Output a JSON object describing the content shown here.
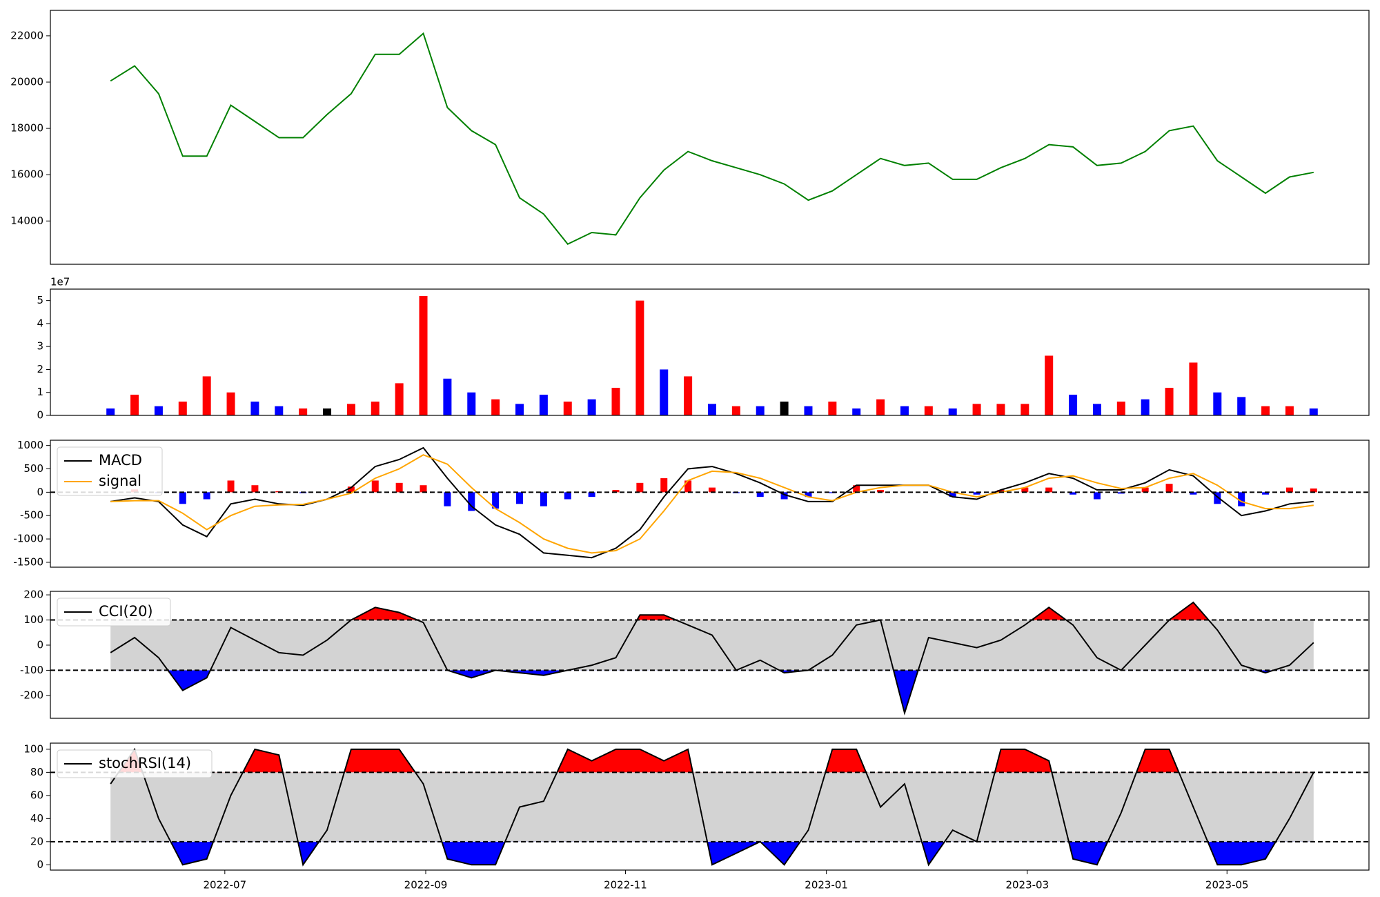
{
  "chart_data": [
    {
      "type": "line",
      "x": [
        2022.405,
        2022.425,
        2022.445,
        2022.465,
        2022.485,
        2022.505,
        2022.525,
        2022.545,
        2022.565,
        2022.585,
        2022.605,
        2022.625,
        2022.645,
        2022.665,
        2022.685,
        2022.705,
        2022.725,
        2022.745,
        2022.765,
        2022.785,
        2022.805,
        2022.825,
        2022.845,
        2022.865,
        2022.885,
        2022.905,
        2022.925,
        2022.945,
        2022.965,
        2022.985,
        2023.005,
        2023.025,
        2023.045,
        2023.065,
        2023.085,
        2023.105,
        2023.125,
        2023.145,
        2023.165,
        2023.185,
        2023.205,
        2023.225,
        2023.245,
        2023.265,
        2023.285,
        2023.305,
        2023.325,
        2023.345,
        2023.365,
        2023.385,
        2023.405
      ],
      "xlim": [
        2022.355,
        2023.451
      ],
      "ylim": [
        12130,
        23100
      ],
      "yticks": [
        14000,
        16000,
        18000,
        20000,
        22000
      ],
      "series": [
        {
          "color": "green",
          "values": [
            20050,
            20700,
            19500,
            16800,
            16800,
            19000,
            18300,
            17600,
            17600,
            18600,
            19500,
            21200,
            21200,
            22100,
            18900,
            17900,
            17300,
            15000,
            14300,
            13000,
            13500,
            13400,
            15000,
            16200,
            17000,
            16600,
            16300,
            16000,
            15600,
            14900,
            15300,
            16000,
            16700,
            16400,
            16500,
            15800,
            15800,
            16300,
            16700,
            17300,
            17200,
            16400,
            16500,
            17000,
            17900,
            18100,
            16600,
            15900,
            15200,
            15900,
            16100
          ]
        }
      ]
    },
    {
      "type": "bar",
      "offset_label": "1e7",
      "ylim": [
        0,
        5.5
      ],
      "yticks": [
        0,
        1,
        2,
        3,
        4,
        5
      ],
      "values": [
        0.3,
        0.9,
        0.4,
        0.6,
        1.7,
        1.0,
        0.6,
        0.4,
        0.3,
        0.3,
        0.5,
        0.6,
        1.4,
        5.2,
        1.6,
        1.0,
        0.7,
        0.5,
        0.9,
        0.6,
        0.7,
        1.2,
        5.0,
        2.0,
        1.7,
        0.5,
        0.4,
        0.4,
        0.6,
        0.4,
        0.6,
        0.3,
        0.7,
        0.4,
        0.4,
        0.3,
        0.5,
        0.5,
        0.5,
        2.6,
        0.9,
        0.5,
        0.6,
        0.7,
        1.2,
        2.3,
        1.0,
        0.8,
        0.4,
        0.4,
        0.3
      ],
      "colors": [
        "blue",
        "red",
        "blue",
        "red",
        "red",
        "red",
        "blue",
        "blue",
        "red",
        "black",
        "red",
        "red",
        "red",
        "red",
        "blue",
        "blue",
        "red",
        "blue",
        "blue",
        "red",
        "blue",
        "red",
        "red",
        "blue",
        "red",
        "blue",
        "red",
        "blue",
        "black",
        "blue",
        "red",
        "blue",
        "red",
        "blue",
        "red",
        "blue",
        "red",
        "red",
        "red",
        "red",
        "blue",
        "blue",
        "red",
        "blue",
        "red",
        "red",
        "blue",
        "blue",
        "red",
        "red",
        "blue"
      ]
    },
    {
      "type": "macd",
      "ylim": [
        -1604,
        1113
      ],
      "yticks": [
        -1500,
        -1000,
        -500,
        0,
        500,
        1000
      ],
      "hlines": [
        0
      ],
      "legend": "upper left",
      "series": [
        {
          "name": "MACD",
          "color": "black",
          "values": [
            -200,
            -120,
            -200,
            -700,
            -950,
            -250,
            -150,
            -250,
            -280,
            -150,
            100,
            550,
            700,
            950,
            300,
            -300,
            -700,
            -900,
            -1300,
            -1350,
            -1400,
            -1200,
            -800,
            -100,
            500,
            550,
            400,
            200,
            -50,
            -200,
            -200,
            150,
            150,
            150,
            150,
            -100,
            -150,
            50,
            200,
            400,
            300,
            50,
            50,
            200,
            480,
            350,
            -100,
            -500,
            -400,
            -250,
            -200
          ]
        },
        {
          "name": "signal",
          "color": "orange",
          "values": [
            -200,
            -180,
            -180,
            -450,
            -800,
            -500,
            -300,
            -270,
            -260,
            -150,
            -20,
            300,
            500,
            800,
            600,
            100,
            -350,
            -650,
            -1000,
            -1200,
            -1300,
            -1250,
            -1000,
            -400,
            250,
            450,
            420,
            300,
            100,
            -100,
            -180,
            0,
            100,
            150,
            150,
            0,
            -100,
            0,
            100,
            300,
            350,
            200,
            80,
            100,
            300,
            400,
            150,
            -200,
            -350,
            -350,
            -280
          ]
        }
      ],
      "histogram": {
        "up_color": "red",
        "down_color": "blue",
        "values": [
          0,
          60,
          -20,
          -250,
          -150,
          250,
          150,
          20,
          -20,
          0,
          120,
          250,
          200,
          150,
          -300,
          -400,
          -350,
          -250,
          -300,
          -150,
          -100,
          50,
          200,
          300,
          250,
          100,
          -20,
          -100,
          -150,
          -100,
          -20,
          150,
          50,
          0,
          0,
          -100,
          -50,
          50,
          100,
          100,
          -50,
          -150,
          -30,
          100,
          180,
          -50,
          -250,
          -300,
          -50,
          100,
          80
        ]
      }
    },
    {
      "type": "band",
      "ylim": [
        -291,
        214
      ],
      "yticks": [
        -200,
        -100,
        0,
        100,
        200
      ],
      "hlines": [
        -100,
        100
      ],
      "legend": "upper left",
      "band_color": "lightgray",
      "upper_fill": "red",
      "lower_fill": "blue",
      "series": [
        {
          "name": "CCI(20)",
          "color": "black",
          "values": [
            -30,
            30,
            -50,
            -180,
            -130,
            70,
            20,
            -30,
            -40,
            20,
            100,
            150,
            130,
            90,
            -100,
            -130,
            -100,
            -110,
            -120,
            -100,
            -80,
            -50,
            120,
            120,
            80,
            40,
            -100,
            -60,
            -110,
            -100,
            -40,
            80,
            100,
            -270,
            30,
            10,
            -10,
            20,
            80,
            150,
            80,
            -50,
            -100,
            0,
            100,
            170,
            60,
            -80,
            -110,
            -80,
            10
          ]
        }
      ]
    },
    {
      "type": "band",
      "ylim": [
        -4.6,
        105.3
      ],
      "yticks": [
        0,
        20,
        40,
        60,
        80,
        100
      ],
      "hlines": [
        20,
        80
      ],
      "legend": "upper left",
      "band_color": "lightgray",
      "upper_fill": "red",
      "lower_fill": "blue",
      "xticks": [
        {
          "value": 2022.5,
          "label": "2022-07"
        },
        {
          "value": 2022.667,
          "label": "2022-09"
        },
        {
          "value": 2022.833,
          "label": "2022-11"
        },
        {
          "value": 2023.0,
          "label": "2023-01"
        },
        {
          "value": 2023.167,
          "label": "2023-03"
        },
        {
          "value": 2023.333,
          "label": "2023-05"
        }
      ],
      "series": [
        {
          "name": "stochRSI(14)",
          "color": "black",
          "values": [
            70,
            100,
            40,
            0,
            5,
            60,
            100,
            95,
            0,
            30,
            100,
            100,
            100,
            70,
            5,
            0,
            0,
            50,
            55,
            100,
            90,
            100,
            100,
            90,
            100,
            0,
            10,
            20,
            0,
            30,
            100,
            100,
            50,
            70,
            0,
            30,
            20,
            100,
            100,
            90,
            5,
            0,
            45,
            100,
            100,
            50,
            0,
            0,
            5,
            40,
            80
          ]
        }
      ]
    }
  ]
}
